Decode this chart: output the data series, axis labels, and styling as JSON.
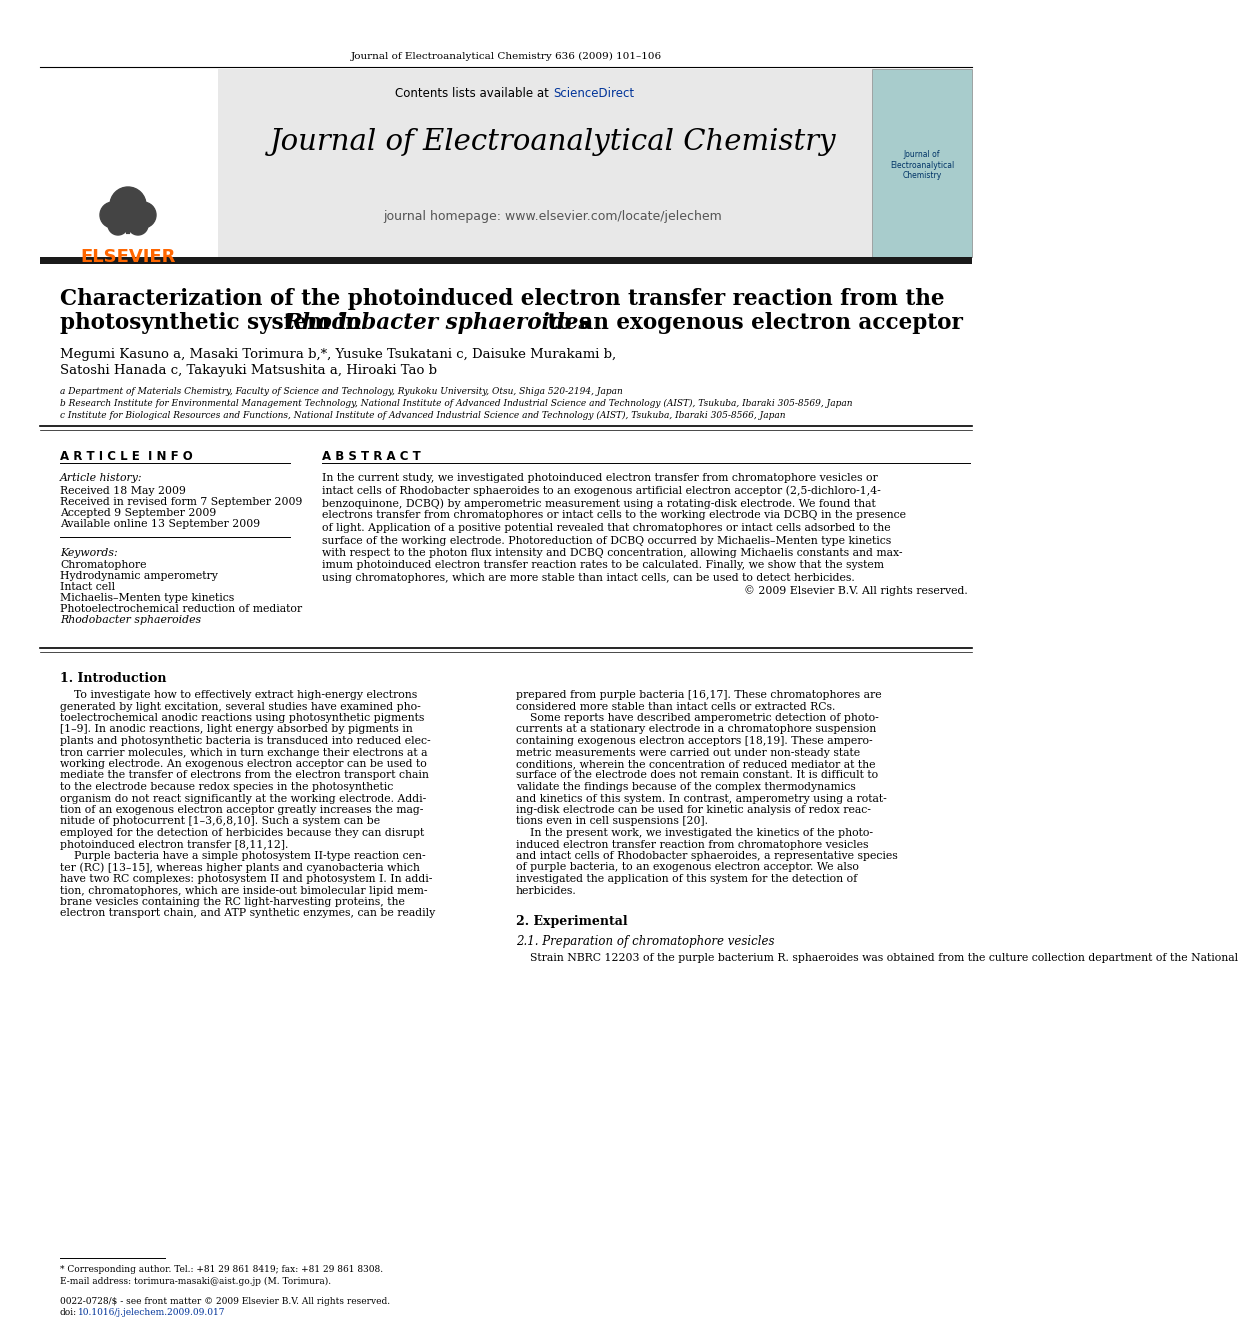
{
  "page_bg": "#ffffff",
  "header_journal_text": "Journal of Electroanalytical Chemistry 636 (2009) 101–106",
  "journal_title": "Journal of Electroanalytical Chemistry",
  "journal_homepage": "journal homepage: www.elsevier.com/locate/jelechem",
  "contents_text": "Contents lists available at ",
  "sciencedirect_text": "ScienceDirect",
  "elsevier_color": "#FF6600",
  "sciencedirect_color": "#003399",
  "header_bg": "#e8e8e8",
  "black_bar_color": "#1a1a1a",
  "article_title_line1": "Characterization of the photoinduced electron transfer reaction from the",
  "article_title_line2": "photosynthetic system in ",
  "article_title_line2_italic": "Rhodobacter sphaeroides",
  "article_title_line2_rest": " to an exogenous electron acceptor",
  "authors_line1": "Megumi Kasuno a, Masaki Torimura b,*, Yusuke Tsukatani c, Daisuke Murakami b,",
  "authors_line2": "Satoshi Hanada c, Takayuki Matsushita a, Hiroaki Tao b",
  "affil_a": "a Department of Materials Chemistry, Faculty of Science and Technology, Ryukoku University, Otsu, Shiga 520-2194, Japan",
  "affil_b": "b Research Institute for Environmental Management Technology, National Institute of Advanced Industrial Science and Technology (AIST), Tsukuba, Ibaraki 305-8569, Japan",
  "affil_c": "c Institute for Biological Resources and Functions, National Institute of Advanced Industrial Science and Technology (AIST), Tsukuba, Ibaraki 305-8566, Japan",
  "article_info_title": "A R T I C L E  I N F O",
  "abstract_title": "A B S T R A C T",
  "article_history_label": "Article history:",
  "received": "Received 18 May 2009",
  "revised": "Received in revised form 7 September 2009",
  "accepted": "Accepted 9 September 2009",
  "available": "Available online 13 September 2009",
  "keywords_label": "Keywords:",
  "keyword1": "Chromatophore",
  "keyword2": "Hydrodynamic amperometry",
  "keyword3": "Intact cell",
  "keyword4": "Michaelis–Menten type kinetics",
  "keyword5": "Photoelectrochemical reduction of mediator",
  "keyword6": "Rhodobacter sphaeroides",
  "copyright_text": "© 2009 Elsevier B.V. All rights reserved.",
  "intro_section_title": "1. Introduction",
  "exp_section_title": "2. Experimental",
  "exp_subsection": "2.1. Preparation of chromatophore vesicles",
  "exp_text_col2": "    Strain NBRC 12203 of the purple bacterium R. sphaeroides was obtained from the culture collection department of the National",
  "footnote_star": "* Corresponding author. Tel.: +81 29 861 8419; fax: +81 29 861 8308.",
  "footnote_email": "E-mail address: torimura-masaki@aist.go.jp (M. Torimura).",
  "footnote_issn": "0022-0728/$ - see front matter © 2009 Elsevier B.V. All rights reserved.",
  "footnote_doi_plain": "doi:",
  "footnote_doi_link": "10.1016/j.jelechem.2009.09.017"
}
